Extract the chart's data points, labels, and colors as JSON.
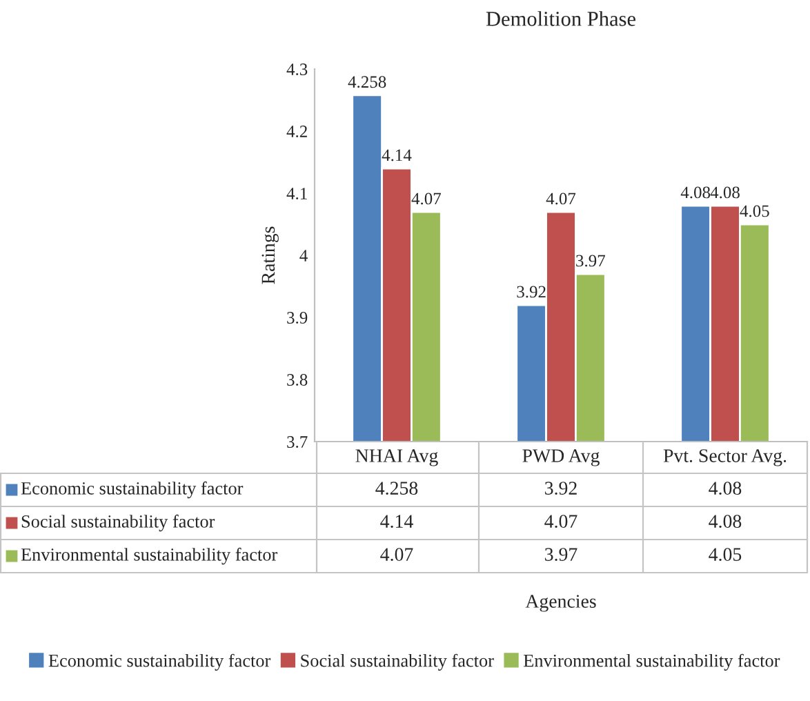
{
  "chart_data": {
    "type": "bar",
    "title": "Demolition Phase",
    "ylabel": "Ratings",
    "annotations": [
      "Agencies",
      "4.258",
      "3.92",
      "4.08",
      "4.14",
      "4.07",
      "4.08",
      "4.07",
      "3.97",
      "4.05"
    ],
    "categories": [
      "NHAI Avg",
      "PWD Avg",
      "Pvt. Sector Avg."
    ],
    "series": [
      {
        "name": "Economic sustainability factor",
        "color": "#4f81bd",
        "values": [
          4.258,
          3.92,
          4.08
        ]
      },
      {
        "name": "Social sustainability factor",
        "color": "#c0504d",
        "values": [
          4.14,
          4.07,
          4.08
        ]
      },
      {
        "name": "Environmental sustainability factor",
        "color": "#9bbb59",
        "values": [
          4.07,
          3.97,
          4.05
        ]
      }
    ],
    "ylim": [
      3.7,
      4.3
    ],
    "yticks": [
      3.7,
      3.8,
      3.9,
      4,
      4.1,
      4.2,
      4.3
    ],
    "data_labels": true,
    "grid": false,
    "legend": "bottom"
  }
}
